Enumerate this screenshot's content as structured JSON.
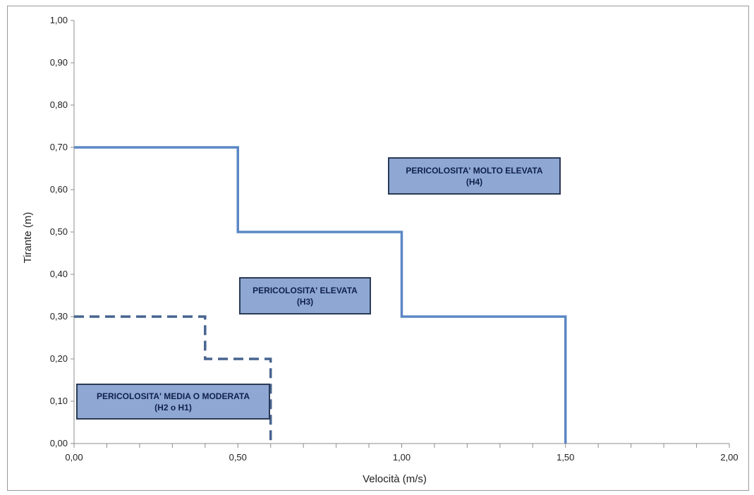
{
  "chart_data": {
    "type": "line",
    "title": "",
    "xlabel": "Velocità (m/s)",
    "ylabel": "Tirante (m)",
    "xlim": [
      0,
      2
    ],
    "ylim": [
      0,
      1
    ],
    "x_ticks": [
      "0,00",
      "0,50",
      "1,00",
      "1,50",
      "2,00"
    ],
    "y_ticks": [
      "0,00",
      "0,10",
      "0,20",
      "0,30",
      "0,40",
      "0,50",
      "0,60",
      "0,70",
      "0,80",
      "0,90",
      "1,00"
    ],
    "x_tick_values": [
      0,
      0.5,
      1,
      1.5,
      2
    ],
    "y_tick_values": [
      0,
      0.1,
      0.2,
      0.3,
      0.4,
      0.5,
      0.6,
      0.7,
      0.8,
      0.9,
      1.0
    ],
    "x_minor_step": 0.1,
    "grid": false,
    "series": [
      {
        "style": "solid",
        "color": "#5b87c5",
        "x": [
          0,
          0.5,
          0.5,
          1.0,
          1.0,
          1.5,
          1.5
        ],
        "y": [
          0.7,
          0.7,
          0.5,
          0.5,
          0.3,
          0.3,
          0.0
        ]
      },
      {
        "style": "dashed",
        "color": "#46648f",
        "x": [
          0,
          0.4,
          0.4,
          0.6,
          0.6
        ],
        "y": [
          0.3,
          0.3,
          0.2,
          0.2,
          0.0
        ]
      }
    ],
    "annotations": [
      {
        "line1": "PERICOLOSITA' MOLTO ELEVATA",
        "line2": "(H4)"
      },
      {
        "line1": "PERICOLOSITA' ELEVATA",
        "line2": "(H3)"
      },
      {
        "line1": "PERICOLOSITA' MEDIA O MODERATA",
        "line2": "(H2 o H1)"
      }
    ]
  }
}
